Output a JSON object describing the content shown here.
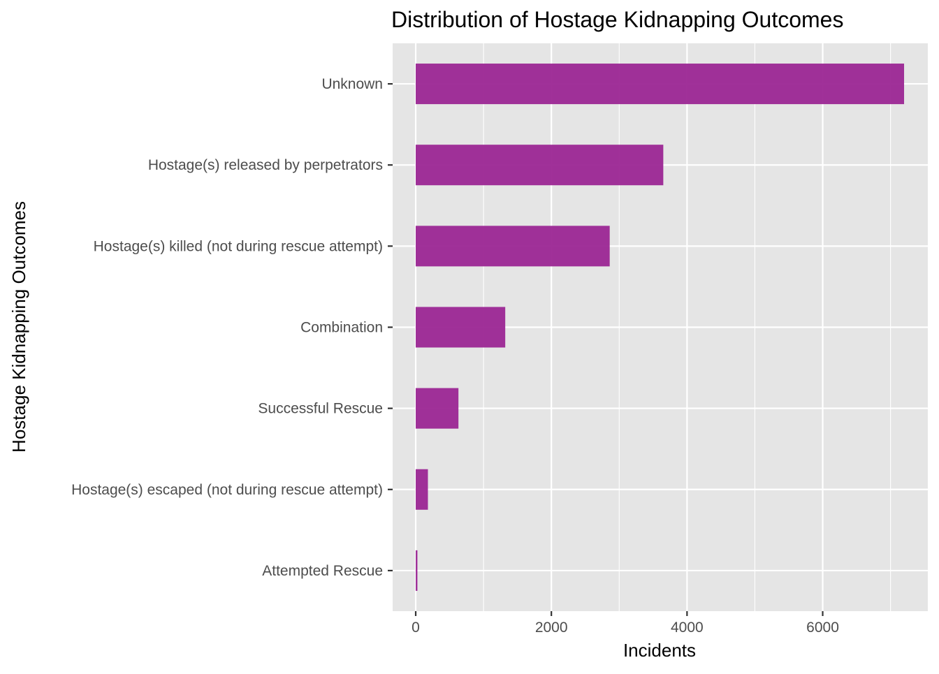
{
  "chart_data": {
    "type": "bar",
    "orientation": "horizontal",
    "title": "Distribution of Hostage Kidnapping Outcomes",
    "xlabel": "Incidents",
    "ylabel": "Hostage Kidnapping Outcomes",
    "categories": [
      "Unknown",
      "Hostage(s) released by perpetrators",
      "Hostage(s) killed (not during rescue attempt)",
      "Combination",
      "Successful Rescue",
      "Hostage(s) escaped (not during rescue attempt)",
      "Attempted Rescue"
    ],
    "values": [
      7200,
      3650,
      2860,
      1320,
      630,
      180,
      25
    ],
    "xlim": [
      -340,
      7550
    ],
    "xticks": [
      0,
      2000,
      4000,
      6000
    ],
    "xtick_labels": [
      "0",
      "2000",
      "4000",
      "6000"
    ],
    "grid": true,
    "legend": "none",
    "colors": {
      "bar": "#9b2694",
      "panel": "#e5e5e5",
      "grid": "#ffffff"
    }
  }
}
